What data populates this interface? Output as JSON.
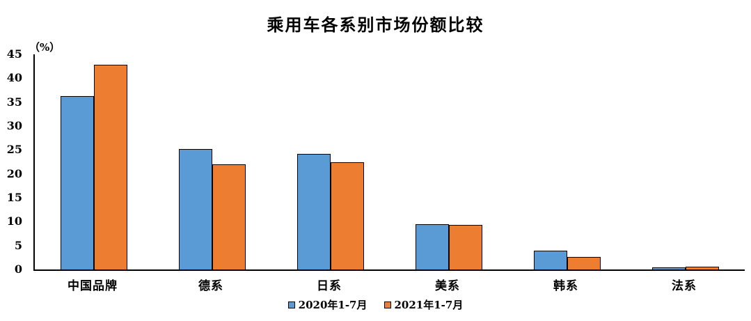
{
  "chart_data": {
    "type": "bar",
    "title": "乘用车各系别市场份额比较",
    "unit_label": "（%）",
    "categories": [
      "中国品牌",
      "德系",
      "日系",
      "美系",
      "韩系",
      "法系"
    ],
    "series": [
      {
        "name": "2020年1-7月",
        "color": "#5B9BD5",
        "values": [
          36.3,
          25.2,
          24.2,
          9.5,
          4.0,
          0.4
        ]
      },
      {
        "name": "2021年1-7月",
        "color": "#ED7D31",
        "values": [
          42.8,
          22.0,
          22.4,
          9.3,
          2.7,
          0.6
        ]
      }
    ],
    "xlabel": "",
    "ylabel": "（%）",
    "ylim": [
      0,
      45
    ],
    "yticks": [
      45,
      40,
      35,
      30,
      25,
      20,
      15,
      10,
      5,
      0
    ],
    "grid": false,
    "legend_position": "bottom",
    "bar_border_color": "#000000",
    "axis_color": "#000000",
    "background_color": "#FFFFFF"
  }
}
